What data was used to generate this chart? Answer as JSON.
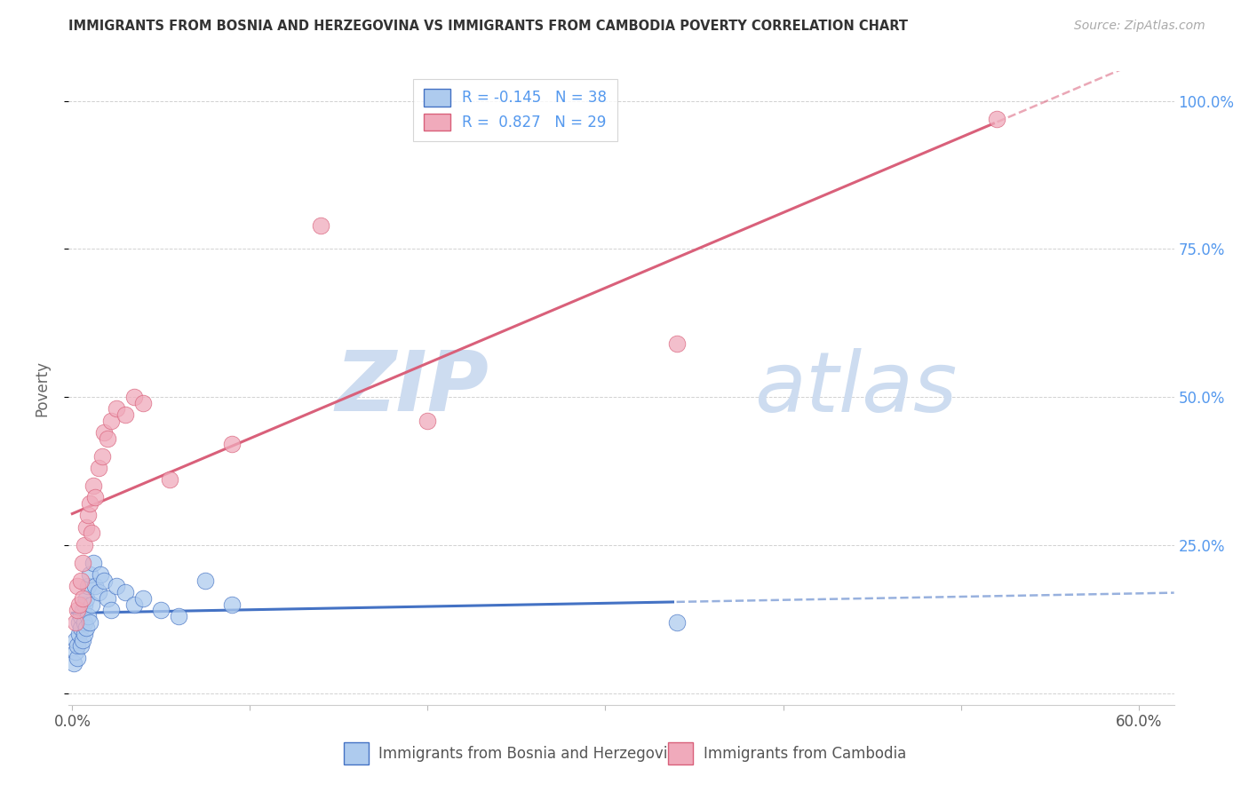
{
  "title": "IMMIGRANTS FROM BOSNIA AND HERZEGOVINA VS IMMIGRANTS FROM CAMBODIA POVERTY CORRELATION CHART",
  "source": "Source: ZipAtlas.com",
  "ylabel": "Poverty",
  "xlabel_bosnia": "Immigrants from Bosnia and Herzegovina",
  "xlabel_cambodia": "Immigrants from Cambodia",
  "xlim": [
    -0.002,
    0.62
  ],
  "ylim": [
    -0.02,
    1.05
  ],
  "xticks": [
    0.0,
    0.1,
    0.2,
    0.3,
    0.4,
    0.5,
    0.6
  ],
  "xticklabels": [
    "0.0%",
    "",
    "",
    "",
    "",
    "",
    "60.0%"
  ],
  "yticks_right": [
    0.25,
    0.5,
    0.75,
    1.0
  ],
  "ytick_right_labels": [
    "25.0%",
    "50.0%",
    "75.0%",
    "100.0%"
  ],
  "bosnia_color": "#aecbee",
  "cambodia_color": "#f0aabb",
  "bosnia_line_color": "#4472c4",
  "cambodia_line_color": "#d9607a",
  "watermark_zip_color": "#cddcf0",
  "watermark_atlas_color": "#cddcf0",
  "bosnia_x": [
    0.001,
    0.002,
    0.002,
    0.003,
    0.003,
    0.004,
    0.004,
    0.005,
    0.005,
    0.005,
    0.006,
    0.006,
    0.007,
    0.007,
    0.007,
    0.008,
    0.008,
    0.009,
    0.009,
    0.01,
    0.01,
    0.011,
    0.012,
    0.013,
    0.015,
    0.016,
    0.018,
    0.02,
    0.022,
    0.025,
    0.03,
    0.035,
    0.04,
    0.05,
    0.06,
    0.075,
    0.09,
    0.34
  ],
  "bosnia_y": [
    0.05,
    0.07,
    0.09,
    0.06,
    0.08,
    0.1,
    0.12,
    0.08,
    0.11,
    0.13,
    0.09,
    0.14,
    0.1,
    0.12,
    0.15,
    0.11,
    0.16,
    0.13,
    0.18,
    0.12,
    0.2,
    0.15,
    0.22,
    0.18,
    0.17,
    0.2,
    0.19,
    0.16,
    0.14,
    0.18,
    0.17,
    0.15,
    0.16,
    0.14,
    0.13,
    0.19,
    0.15,
    0.12
  ],
  "cambodia_x": [
    0.002,
    0.003,
    0.003,
    0.004,
    0.005,
    0.006,
    0.006,
    0.007,
    0.008,
    0.009,
    0.01,
    0.011,
    0.012,
    0.013,
    0.015,
    0.017,
    0.018,
    0.02,
    0.022,
    0.025,
    0.03,
    0.035,
    0.04,
    0.055,
    0.2,
    0.34,
    0.52,
    0.14,
    0.09
  ],
  "cambodia_y": [
    0.12,
    0.14,
    0.18,
    0.15,
    0.19,
    0.22,
    0.16,
    0.25,
    0.28,
    0.3,
    0.32,
    0.27,
    0.35,
    0.33,
    0.38,
    0.4,
    0.44,
    0.43,
    0.46,
    0.48,
    0.47,
    0.5,
    0.49,
    0.36,
    0.46,
    0.59,
    0.97,
    0.79,
    0.42
  ]
}
